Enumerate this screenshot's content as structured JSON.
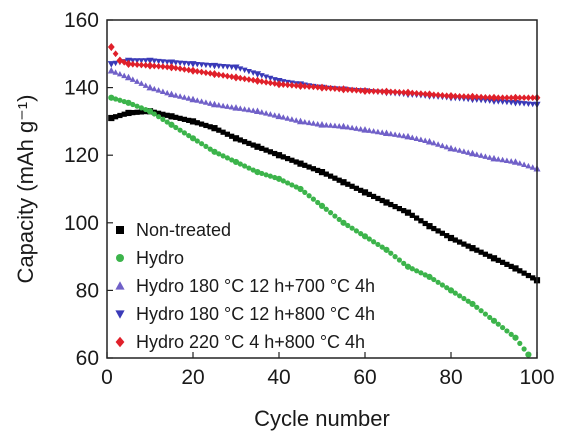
{
  "chart_data": {
    "type": "scatter",
    "xlabel": "Cycle number",
    "ylabel": "Capacity (mAh g⁻¹)",
    "xlim": [
      0,
      100
    ],
    "ylim": [
      60,
      160
    ],
    "xticks": [
      0,
      20,
      40,
      60,
      80,
      100
    ],
    "yticks": [
      60,
      80,
      100,
      120,
      140,
      160
    ],
    "grid": false,
    "legend_position": "bottom-left",
    "series": [
      {
        "name": "Non-treated",
        "color": "#000000",
        "marker": "square",
        "points": [
          [
            1,
            131
          ],
          [
            5,
            132.5
          ],
          [
            10,
            133
          ],
          [
            15,
            131.5
          ],
          [
            20,
            130
          ],
          [
            25,
            128
          ],
          [
            30,
            125
          ],
          [
            35,
            122.5
          ],
          [
            40,
            120
          ],
          [
            45,
            117.5
          ],
          [
            50,
            115
          ],
          [
            55,
            112
          ],
          [
            60,
            109
          ],
          [
            65,
            106
          ],
          [
            70,
            103
          ],
          [
            75,
            99
          ],
          [
            80,
            95.5
          ],
          [
            85,
            92.5
          ],
          [
            90,
            89.5
          ],
          [
            95,
            86.5
          ],
          [
            100,
            83
          ]
        ]
      },
      {
        "name": "Hydro",
        "color": "#3cb44b",
        "marker": "circle",
        "points": [
          [
            1,
            137
          ],
          [
            5,
            135.5
          ],
          [
            10,
            133
          ],
          [
            15,
            129
          ],
          [
            20,
            125
          ],
          [
            25,
            121
          ],
          [
            30,
            118
          ],
          [
            35,
            115
          ],
          [
            40,
            113
          ],
          [
            45,
            110
          ],
          [
            50,
            105
          ],
          [
            55,
            100
          ],
          [
            60,
            96
          ],
          [
            65,
            92
          ],
          [
            70,
            87
          ],
          [
            75,
            84
          ],
          [
            80,
            80
          ],
          [
            85,
            76
          ],
          [
            90,
            71
          ],
          [
            95,
            66
          ],
          [
            98,
            61
          ]
        ]
      },
      {
        "name": "Hydro 180 °C 12 h+700 °C 4h",
        "color": "#7060c8",
        "marker": "triangle-up",
        "points": [
          [
            1,
            145
          ],
          [
            5,
            143
          ],
          [
            10,
            140
          ],
          [
            15,
            138
          ],
          [
            20,
            136.5
          ],
          [
            25,
            135
          ],
          [
            30,
            134
          ],
          [
            35,
            133
          ],
          [
            40,
            131.5
          ],
          [
            45,
            130
          ],
          [
            50,
            129
          ],
          [
            55,
            128.5
          ],
          [
            60,
            127.5
          ],
          [
            65,
            126.5
          ],
          [
            70,
            125.5
          ],
          [
            75,
            124
          ],
          [
            80,
            122
          ],
          [
            85,
            120.5
          ],
          [
            90,
            119
          ],
          [
            95,
            118
          ],
          [
            100,
            116
          ]
        ]
      },
      {
        "name": "Hydro 180 °C 12 h+800 °C 4h",
        "color": "#3a3ab8",
        "marker": "triangle-down",
        "points": [
          [
            1,
            147
          ],
          [
            5,
            148
          ],
          [
            10,
            148
          ],
          [
            15,
            147.5
          ],
          [
            20,
            147
          ],
          [
            25,
            146.5
          ],
          [
            30,
            146
          ],
          [
            35,
            144
          ],
          [
            40,
            142
          ],
          [
            45,
            141
          ],
          [
            50,
            140
          ],
          [
            55,
            139.5
          ],
          [
            60,
            139
          ],
          [
            65,
            138.5
          ],
          [
            70,
            138
          ],
          [
            75,
            137.5
          ],
          [
            80,
            137
          ],
          [
            85,
            136.5
          ],
          [
            90,
            136
          ],
          [
            95,
            135.5
          ],
          [
            100,
            135
          ]
        ]
      },
      {
        "name": "Hydro 220 °C 4 h+800 °C 4h",
        "color": "#e0202a",
        "marker": "diamond",
        "points": [
          [
            1,
            152
          ],
          [
            3,
            148
          ],
          [
            5,
            147
          ],
          [
            10,
            146.5
          ],
          [
            15,
            146
          ],
          [
            20,
            145
          ],
          [
            25,
            144
          ],
          [
            30,
            143
          ],
          [
            35,
            142
          ],
          [
            40,
            141
          ],
          [
            45,
            140.5
          ],
          [
            50,
            140
          ],
          [
            55,
            139.5
          ],
          [
            60,
            139
          ],
          [
            65,
            138.8
          ],
          [
            70,
            138.5
          ],
          [
            75,
            138
          ],
          [
            80,
            137.5
          ],
          [
            85,
            137.3
          ],
          [
            90,
            137
          ],
          [
            95,
            137
          ],
          [
            100,
            137
          ]
        ]
      }
    ]
  }
}
